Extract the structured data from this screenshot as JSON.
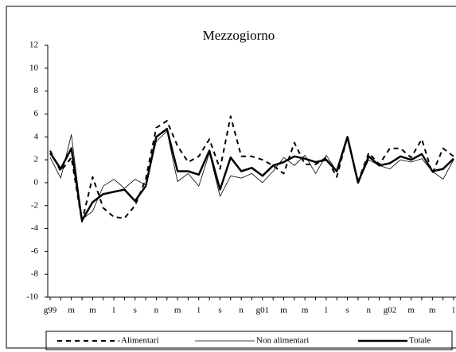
{
  "chart_data": {
    "type": "line",
    "title": "Mezzogiorno",
    "categories": [
      "g99",
      null,
      "m",
      null,
      "m",
      null,
      "l",
      null,
      "s",
      null,
      "n",
      null,
      "m",
      null,
      "l",
      null,
      "s",
      null,
      "n",
      null,
      "g01",
      null,
      "m",
      null,
      "m",
      null,
      "l",
      null,
      "s",
      null,
      "n",
      null,
      "g02",
      null,
      "m",
      null,
      "m",
      null,
      "l"
    ],
    "series": [
      {
        "name": "Alimentari",
        "color": "#000000",
        "dash": true,
        "width": 2,
        "values": [
          2.8,
          1.0,
          2.2,
          -3.4,
          0.5,
          -2.2,
          -3.0,
          -3.1,
          -2.0,
          0.3,
          4.8,
          5.4,
          3.2,
          1.8,
          2.3,
          3.8,
          1.2,
          5.8,
          2.3,
          2.3,
          2.0,
          1.5,
          0.8,
          3.5,
          1.6,
          1.6,
          2.2,
          0.5,
          4.0,
          0.1,
          2.6,
          1.6,
          3.0,
          3.0,
          2.2,
          3.8,
          0.8,
          3.0,
          2.3
        ]
      },
      {
        "name": "Non alimentari",
        "color": "#000000",
        "dash": false,
        "width": 0.8,
        "values": [
          2.2,
          0.4,
          4.2,
          -3.2,
          -2.5,
          -0.3,
          0.3,
          -0.5,
          0.3,
          -0.2,
          3.6,
          4.5,
          0.1,
          0.8,
          -0.3,
          2.6,
          -1.2,
          0.6,
          0.4,
          0.8,
          0.0,
          1.0,
          2.2,
          1.5,
          2.4,
          0.8,
          2.4,
          1.0,
          4.0,
          0.0,
          2.0,
          1.5,
          1.2,
          2.0,
          1.8,
          2.1,
          1.0,
          0.3,
          2.0
        ]
      },
      {
        "name": "Totale",
        "color": "#000000",
        "dash": false,
        "width": 2.5,
        "values": [
          2.6,
          1.2,
          3.0,
          -3.3,
          -1.7,
          -1.0,
          -0.8,
          -0.6,
          -1.6,
          -0.3,
          4.0,
          4.7,
          1.0,
          1.0,
          0.7,
          2.8,
          -0.6,
          2.2,
          1.0,
          1.3,
          0.6,
          1.5,
          1.8,
          2.3,
          2.1,
          1.8,
          2.0,
          1.0,
          4.0,
          0.0,
          2.3,
          1.5,
          1.7,
          2.3,
          2.0,
          2.5,
          1.0,
          1.2,
          2.1
        ]
      }
    ],
    "ylim": [
      -10,
      12
    ],
    "yticks": [
      -10,
      -8,
      -6,
      -4,
      -2,
      0,
      2,
      4,
      6,
      8,
      10,
      12
    ],
    "grid": false
  }
}
